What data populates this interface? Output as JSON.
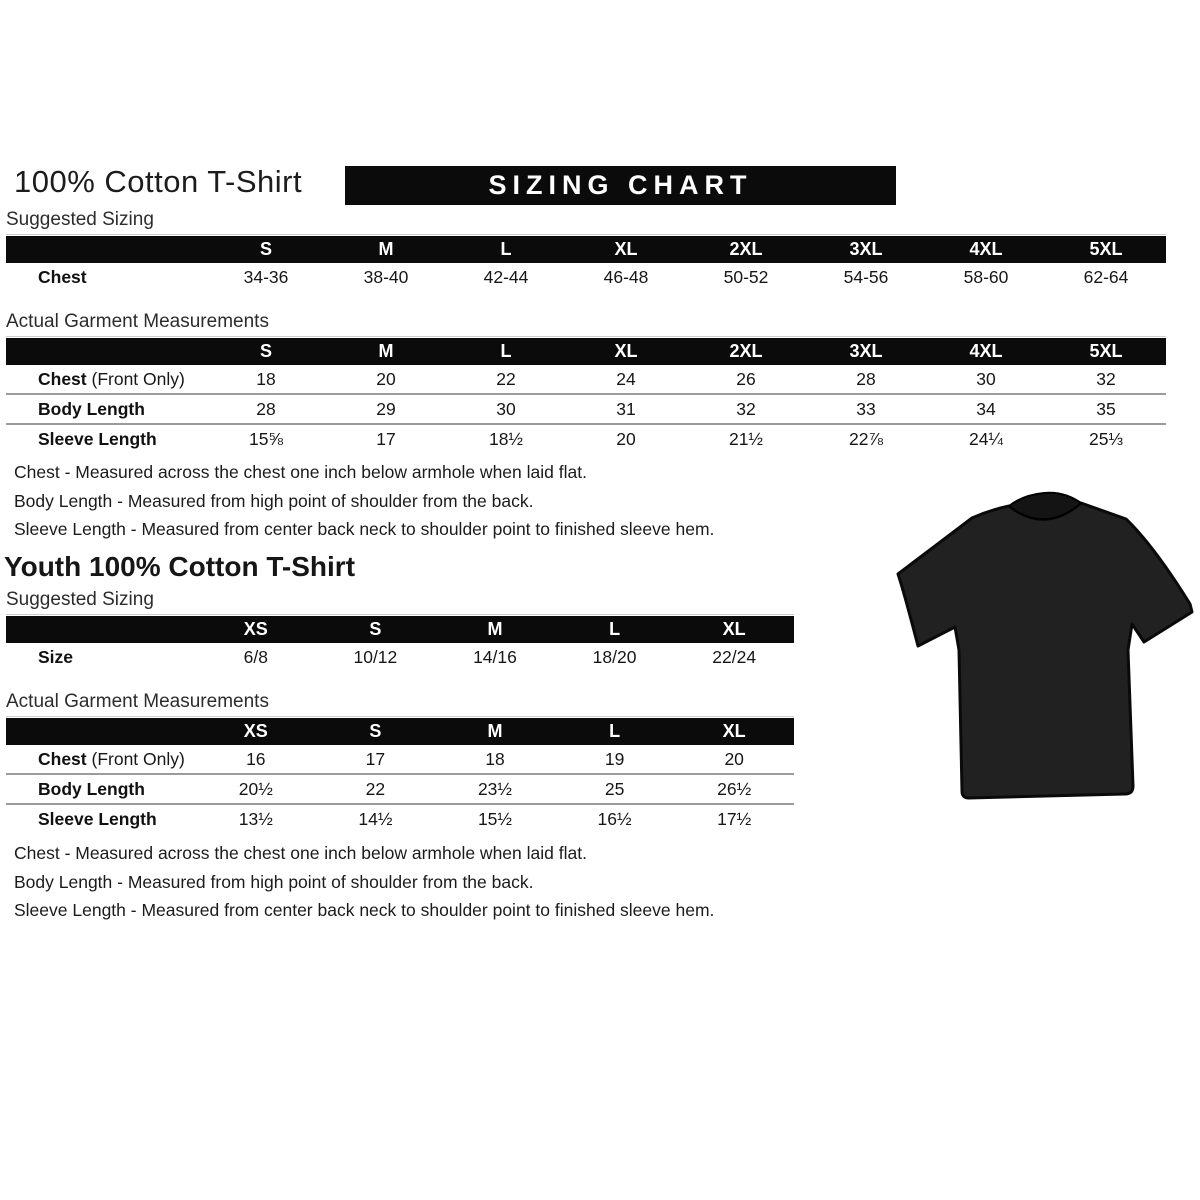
{
  "header": {
    "title": "100% Cotton T-Shirt",
    "banner": "SIZING CHART"
  },
  "adult": {
    "suggested": {
      "heading": "Suggested Sizing",
      "columns": [
        "S",
        "M",
        "L",
        "XL",
        "2XL",
        "3XL",
        "4XL",
        "5XL"
      ],
      "rows": [
        {
          "label": "Chest",
          "suffix": "",
          "values": [
            "34-36",
            "38-40",
            "42-44",
            "46-48",
            "50-52",
            "54-56",
            "58-60",
            "62-64"
          ]
        }
      ]
    },
    "actual": {
      "heading": "Actual Garment Measurements",
      "columns": [
        "S",
        "M",
        "L",
        "XL",
        "2XL",
        "3XL",
        "4XL",
        "5XL"
      ],
      "rows": [
        {
          "label": "Chest",
          "suffix": "(Front Only)",
          "values": [
            "18",
            "20",
            "22",
            "24",
            "26",
            "28",
            "30",
            "32"
          ]
        },
        {
          "label": "Body Length",
          "suffix": "",
          "values": [
            "28",
            "29",
            "30",
            "31",
            "32",
            "33",
            "34",
            "35"
          ]
        },
        {
          "label": "Sleeve Length",
          "suffix": "",
          "values": [
            "15⅝",
            "17",
            "18½",
            "20",
            "21½",
            "22⅞",
            "24¼",
            "25⅓"
          ]
        }
      ]
    },
    "notes": [
      "Chest - Measured across the chest one inch below armhole when laid flat.",
      "Body Length - Measured from high point of shoulder from the back.",
      "Sleeve Length - Measured from center back neck to shoulder point to finished sleeve hem."
    ]
  },
  "youth": {
    "title": "Youth 100% Cotton T-Shirt",
    "suggested": {
      "heading": "Suggested Sizing",
      "columns": [
        "XS",
        "S",
        "M",
        "L",
        "XL"
      ],
      "rows": [
        {
          "label": "Size",
          "suffix": "",
          "values": [
            "6/8",
            "10/12",
            "14/16",
            "18/20",
            "22/24"
          ]
        }
      ]
    },
    "actual": {
      "heading": "Actual Garment Measurements",
      "columns": [
        "XS",
        "S",
        "M",
        "L",
        "XL"
      ],
      "rows": [
        {
          "label": "Chest",
          "suffix": "(Front Only)",
          "values": [
            "16",
            "17",
            "18",
            "19",
            "20"
          ]
        },
        {
          "label": "Body Length",
          "suffix": "",
          "values": [
            "20½",
            "22",
            "23½",
            "25",
            "26½"
          ]
        },
        {
          "label": "Sleeve Length",
          "suffix": "",
          "values": [
            "13½",
            "14½",
            "15½",
            "16½",
            "17½"
          ]
        }
      ]
    },
    "notes": [
      "Chest - Measured across the chest one inch below armhole when laid flat.",
      "Body Length - Measured from high point of shoulder from the back.",
      "Sleeve Length - Measured from center back neck to shoulder point to finished sleeve hem."
    ]
  },
  "tshirt": {
    "name": "black t-shirt product photo",
    "color": "#212121"
  }
}
